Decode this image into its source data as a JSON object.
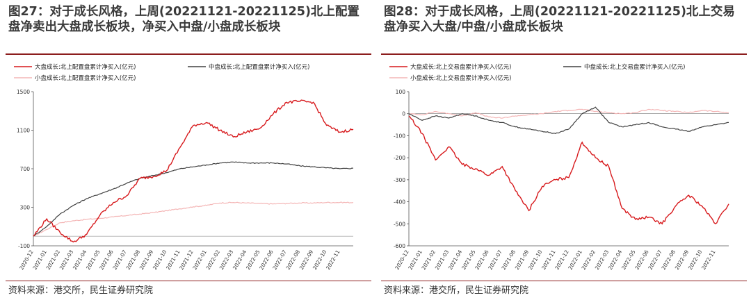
{
  "figures": [
    {
      "title": "图27：对于成长风格，上周(20221121-20221125)北上配置盘净卖出大盘成长板块，净买入中盘/小盘成长板块",
      "source": "资料来源：港交所，民生证券研究院"
    },
    {
      "title": "图28：对于成长风格，上周(20221121-20221125)北上交易盘净买入大盘/中盘/小盘成长板块",
      "source": "资料来源：港交所，民生证券研究院"
    }
  ],
  "x_ticks": [
    "2020-12",
    "2021-01",
    "2021-02",
    "2021-03",
    "2021-04",
    "2021-05",
    "2021-06",
    "2021-07",
    "2021-08",
    "2021-09",
    "2021-10",
    "2021-11",
    "2021-12",
    "2022-01",
    "2022-02",
    "2022-03",
    "2022-04",
    "2022-05",
    "2022-06",
    "2022-07",
    "2022-08",
    "2022-09",
    "2022-10",
    "2022-11"
  ],
  "colors": {
    "large": "#d7191c",
    "mid": "#404040",
    "small": "#f4b6b6",
    "accent": "#8c1d1d"
  },
  "chart_data": [
    {
      "type": "line",
      "title": "",
      "ylim": [
        -100,
        1500
      ],
      "yticks": [
        -100,
        300,
        700,
        1100,
        1500
      ],
      "legend": "top",
      "x": [
        "2020-12",
        "2021-01",
        "2021-02",
        "2021-03",
        "2021-04",
        "2021-05",
        "2021-06",
        "2021-07",
        "2021-08",
        "2021-09",
        "2021-10",
        "2021-11",
        "2021-12",
        "2022-01",
        "2022-02",
        "2022-03",
        "2022-04",
        "2022-05",
        "2022-06",
        "2022-07",
        "2022-08",
        "2022-09",
        "2022-10",
        "2022-11",
        "2022-11-25"
      ],
      "series": [
        {
          "name": "大盘成长:北上配置盘累计净买入(亿元)",
          "key": "large",
          "values": [
            0,
            180,
            40,
            -60,
            20,
            220,
            350,
            420,
            600,
            620,
            680,
            920,
            1150,
            1180,
            1100,
            1030,
            1080,
            1120,
            1270,
            1390,
            1400,
            1390,
            1150,
            1080,
            1110
          ]
        },
        {
          "name": "中盘成长:北上配置盘累计净买入(亿元)",
          "key": "mid",
          "values": [
            0,
            100,
            230,
            320,
            390,
            440,
            490,
            550,
            600,
            630,
            660,
            700,
            720,
            740,
            760,
            770,
            760,
            760,
            760,
            750,
            730,
            720,
            710,
            700,
            705
          ]
        },
        {
          "name": "小盘成长:北上配置盘累计净买入(亿元)",
          "key": "small",
          "values": [
            0,
            70,
            140,
            160,
            175,
            185,
            200,
            215,
            230,
            245,
            265,
            285,
            305,
            320,
            345,
            350,
            345,
            340,
            335,
            340,
            345,
            345,
            350,
            350,
            350
          ]
        }
      ]
    },
    {
      "type": "line",
      "title": "",
      "ylim": [
        -600,
        100
      ],
      "yticks": [
        -600,
        -500,
        -400,
        -300,
        -200,
        -100,
        0,
        100
      ],
      "legend": "top",
      "x": [
        "2020-12",
        "2021-01",
        "2021-02",
        "2021-03",
        "2021-04",
        "2021-05",
        "2021-06",
        "2021-07",
        "2021-08",
        "2021-09",
        "2021-10",
        "2021-11",
        "2021-12",
        "2022-01",
        "2022-02",
        "2022-03",
        "2022-04",
        "2022-05",
        "2022-06",
        "2022-07",
        "2022-08",
        "2022-09",
        "2022-10",
        "2022-11",
        "2022-11-25"
      ],
      "series": [
        {
          "name": "大盘成长:北上交易盘累计净买入(亿元)",
          "key": "large",
          "values": [
            -10,
            -90,
            -210,
            -150,
            -230,
            -250,
            -280,
            -240,
            -350,
            -440,
            -330,
            -300,
            -290,
            -130,
            -200,
            -240,
            -430,
            -480,
            -470,
            -500,
            -420,
            -370,
            -420,
            -500,
            -410
          ]
        },
        {
          "name": "中盘成长:北上交易盘累计净买入(亿元)",
          "key": "mid",
          "values": [
            0,
            -30,
            -10,
            -20,
            0,
            -10,
            -30,
            -40,
            -60,
            -70,
            -80,
            -90,
            -70,
            0,
            30,
            -40,
            -60,
            -50,
            -40,
            -60,
            -70,
            -80,
            -60,
            -50,
            -40
          ]
        },
        {
          "name": "小盘成长:北上交易盘累计净买入(亿元)",
          "key": "small",
          "values": [
            0,
            -5,
            10,
            0,
            -10,
            5,
            -15,
            -20,
            -10,
            -5,
            0,
            10,
            15,
            20,
            10,
            5,
            0,
            5,
            20,
            15,
            10,
            5,
            15,
            10,
            5
          ]
        }
      ]
    }
  ]
}
